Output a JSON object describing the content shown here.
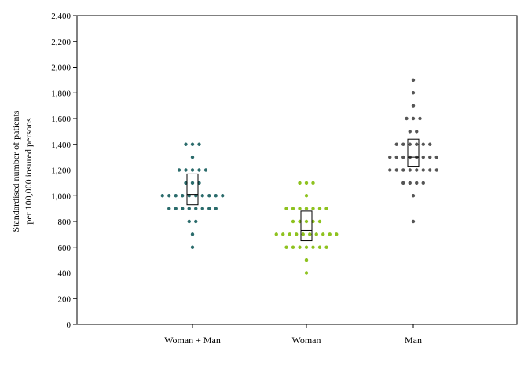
{
  "chart_data": {
    "type": "scatter",
    "subtype": "dot-strip-with-box",
    "ylabel_lines": [
      "Standardised number of patients",
      "per 100,000 insured persons"
    ],
    "xlabel": "",
    "ylim": [
      0,
      2400
    ],
    "yticks": [
      0,
      200,
      400,
      600,
      800,
      1000,
      1200,
      1400,
      1600,
      1800,
      2000,
      2200,
      2400
    ],
    "ytick_labels": [
      "0",
      "200",
      "400",
      "600",
      "800",
      "1,000",
      "1,200",
      "1,400",
      "1,600",
      "1,800",
      "2,000",
      "2,200",
      "2,400"
    ],
    "grid": false,
    "legend": "none",
    "categories": [
      "Woman + Man",
      "Woman",
      "Man"
    ],
    "series": [
      {
        "category": "Woman + Man",
        "color": "#2a6b6b",
        "points": [
          [
            600,
            1
          ],
          [
            700,
            1
          ],
          [
            800,
            2
          ],
          [
            900,
            8
          ],
          [
            1000,
            10
          ],
          [
            1100,
            3
          ],
          [
            1200,
            5
          ],
          [
            1300,
            1
          ],
          [
            1400,
            3
          ]
        ],
        "box": {
          "q1": 930,
          "median": 1010,
          "q3": 1170
        }
      },
      {
        "category": "Woman",
        "color": "#8ec21f",
        "points": [
          [
            400,
            1
          ],
          [
            500,
            1
          ],
          [
            600,
            7
          ],
          [
            700,
            10
          ],
          [
            800,
            5
          ],
          [
            900,
            7
          ],
          [
            1000,
            1
          ],
          [
            1100,
            3
          ]
        ],
        "box": {
          "q1": 650,
          "median": 730,
          "q3": 880
        }
      },
      {
        "category": "Man",
        "color": "#555555",
        "points": [
          [
            800,
            1
          ],
          [
            1000,
            1
          ],
          [
            1100,
            4
          ],
          [
            1200,
            8
          ],
          [
            1300,
            8
          ],
          [
            1400,
            6
          ],
          [
            1500,
            2
          ],
          [
            1600,
            3
          ],
          [
            1700,
            1
          ],
          [
            1800,
            1
          ],
          [
            1900,
            1
          ]
        ],
        "box": {
          "q1": 1230,
          "median": 1300,
          "q3": 1440
        }
      }
    ]
  }
}
